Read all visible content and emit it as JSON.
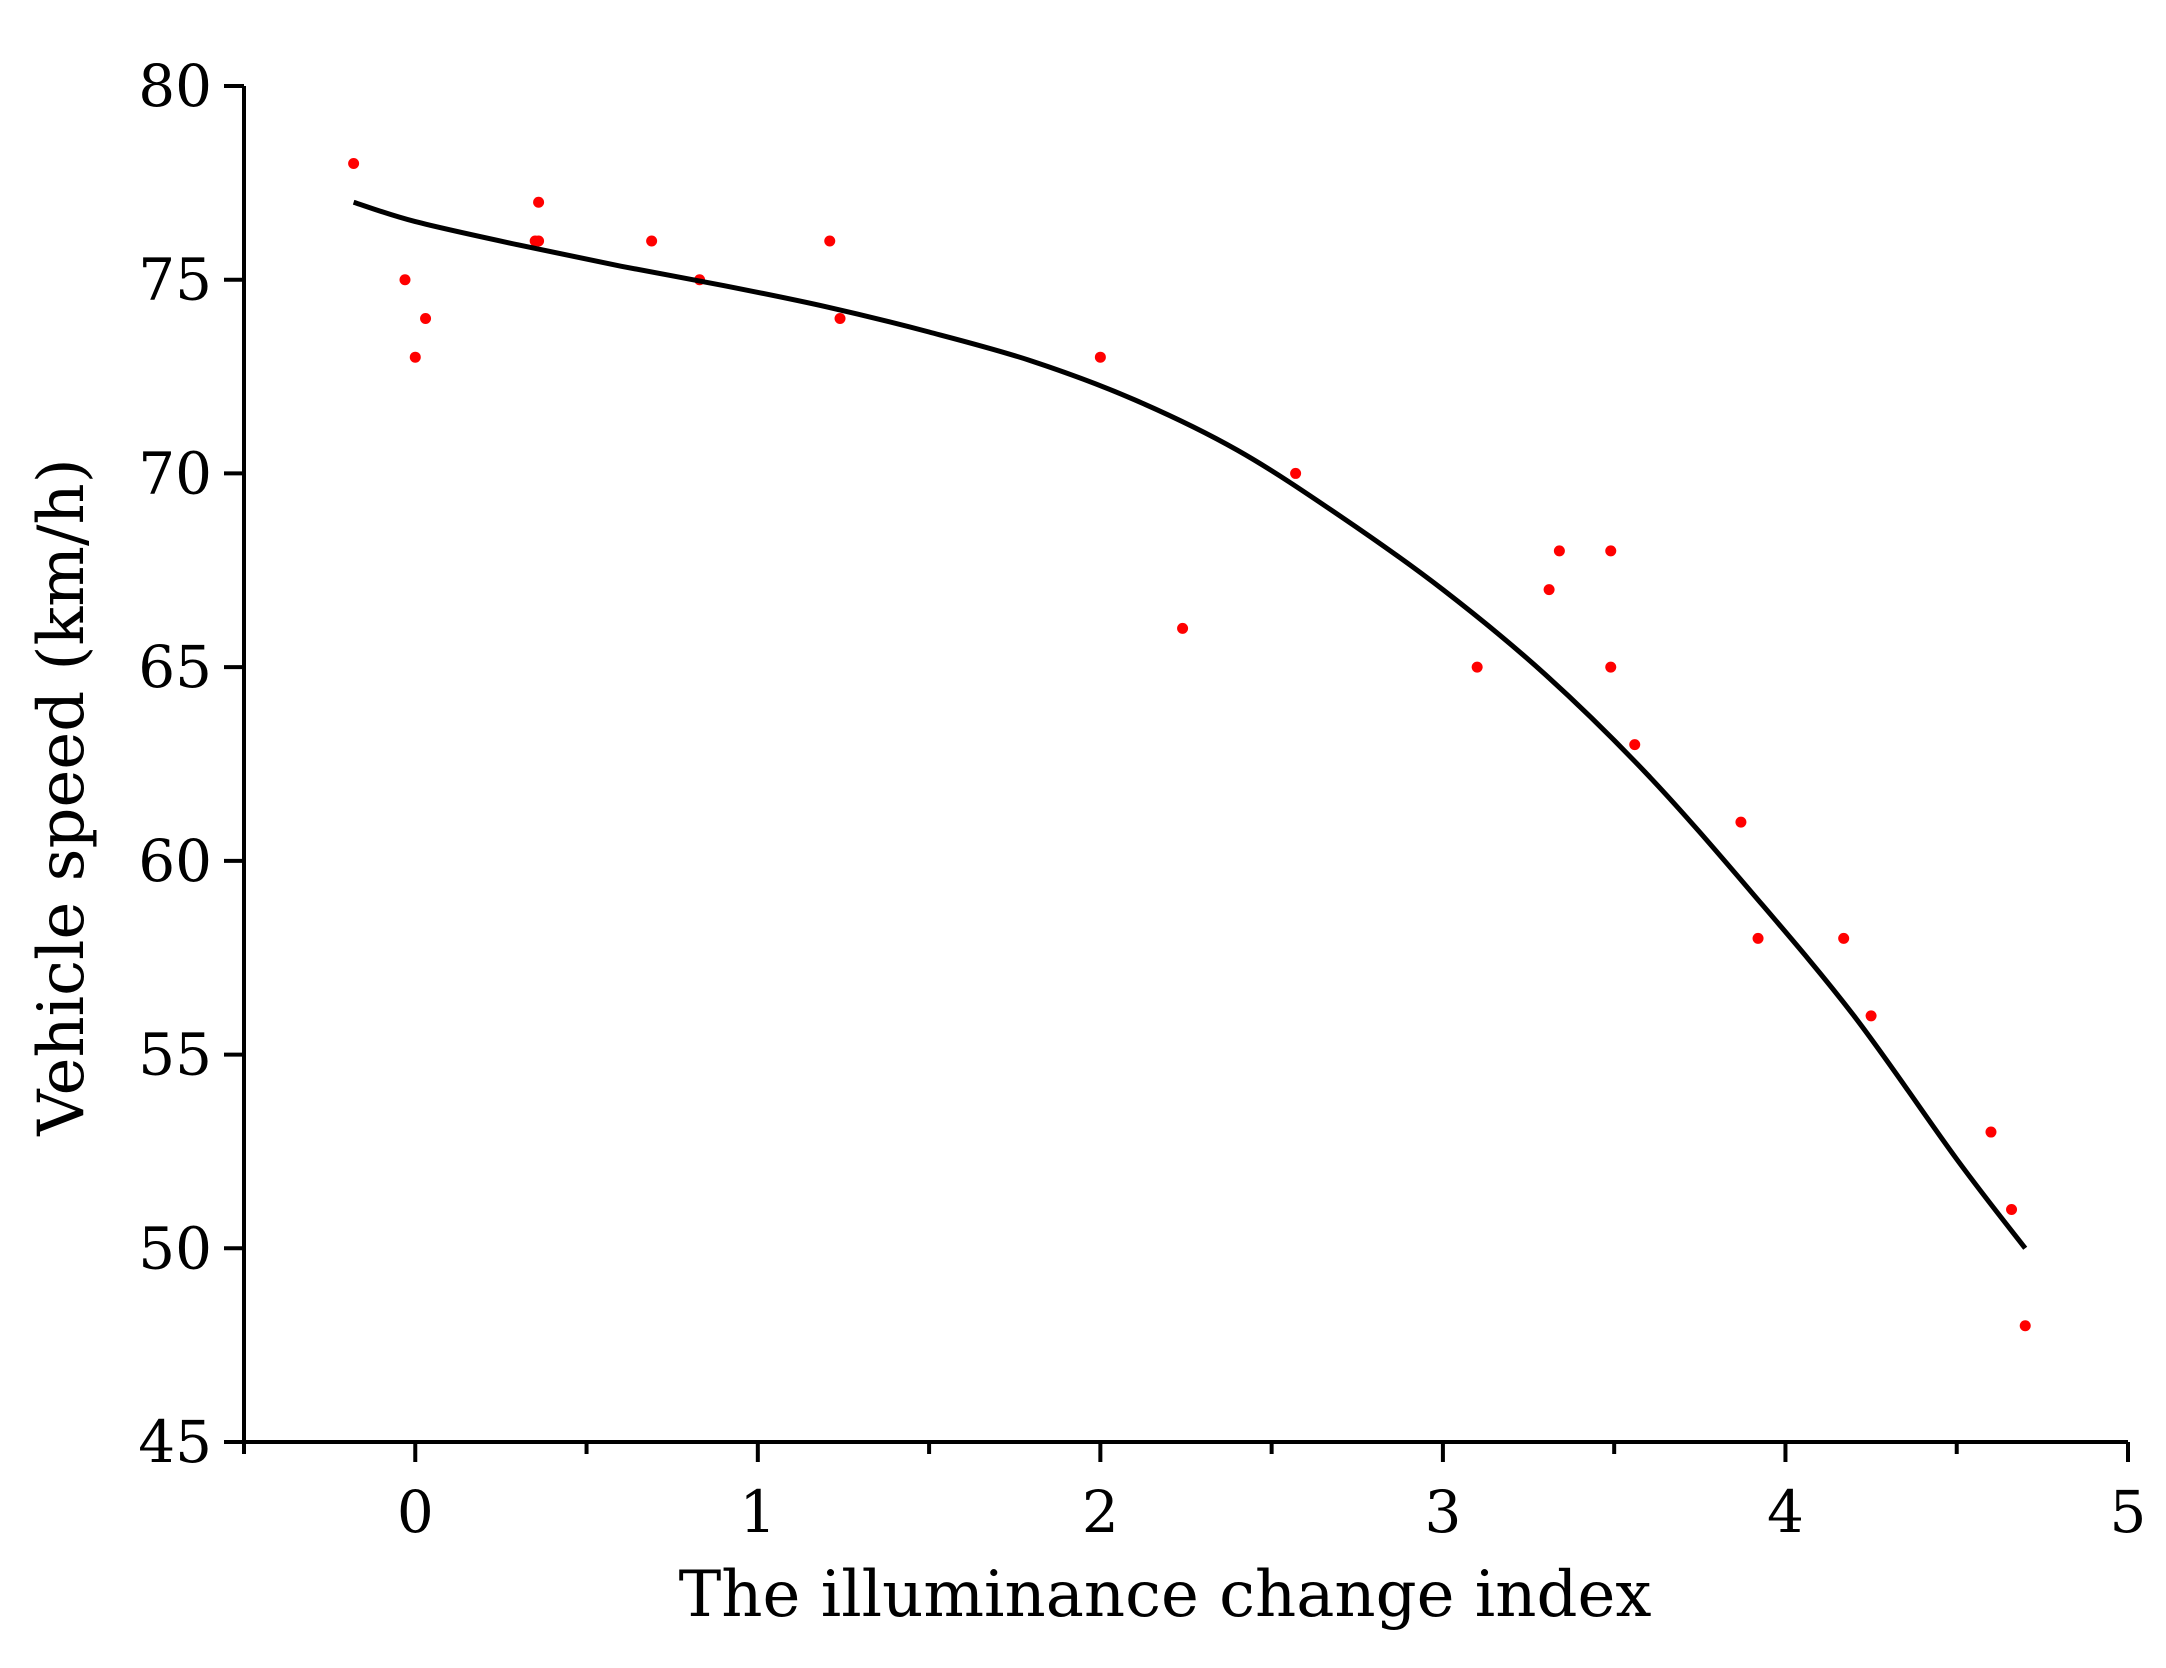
{
  "chart_data": {
    "type": "scatter",
    "title": "",
    "xlabel": "The illuminance change index",
    "ylabel": "Vehicle speed  (km/h)",
    "xlim": [
      -0.5,
      5
    ],
    "ylim": [
      45,
      80
    ],
    "x_ticks": [
      0,
      1,
      2,
      3,
      4,
      5
    ],
    "x_ticks_labels": [
      "0",
      "1",
      "2",
      "3",
      "4",
      "5"
    ],
    "x_minor_ticks": [
      -0.5,
      0.5,
      1.5,
      2.5,
      3.5,
      4.5
    ],
    "y_ticks": [
      45,
      50,
      55,
      60,
      65,
      70,
      75,
      80
    ],
    "y_ticks_labels": [
      "45",
      "50",
      "55",
      "60",
      "65",
      "70",
      "75",
      "80"
    ],
    "grid": false,
    "legend": "none",
    "colors": {
      "points": "#ff0000",
      "fit_line": "#000000",
      "axes": "#000000"
    },
    "series": [
      {
        "type": "scatter",
        "points": [
          [
            -0.18,
            78
          ],
          [
            -0.03,
            75
          ],
          [
            0.0,
            73
          ],
          [
            0.03,
            74
          ],
          [
            0.35,
            76
          ],
          [
            0.36,
            76
          ],
          [
            0.36,
            77
          ],
          [
            0.69,
            76
          ],
          [
            0.83,
            75
          ],
          [
            1.21,
            76
          ],
          [
            1.24,
            74
          ],
          [
            2.0,
            73
          ],
          [
            2.24,
            66
          ],
          [
            2.57,
            70
          ],
          [
            3.1,
            65
          ],
          [
            3.31,
            67
          ],
          [
            3.34,
            68
          ],
          [
            3.49,
            68
          ],
          [
            3.49,
            65
          ],
          [
            3.56,
            63
          ],
          [
            3.87,
            61
          ],
          [
            3.92,
            58
          ],
          [
            4.17,
            58
          ],
          [
            4.25,
            56
          ],
          [
            4.6,
            53
          ],
          [
            4.66,
            51
          ],
          [
            4.7,
            48
          ]
        ]
      },
      {
        "type": "line",
        "points": [
          [
            -0.18,
            77.0
          ],
          [
            0.0,
            76.5
          ],
          [
            0.3,
            75.9
          ],
          [
            0.6,
            75.35
          ],
          [
            0.9,
            74.85
          ],
          [
            1.2,
            74.3
          ],
          [
            1.5,
            73.65
          ],
          [
            1.8,
            72.9
          ],
          [
            2.1,
            71.9
          ],
          [
            2.4,
            70.6
          ],
          [
            2.7,
            68.9
          ],
          [
            3.0,
            67.0
          ],
          [
            3.3,
            64.8
          ],
          [
            3.6,
            62.2
          ],
          [
            3.9,
            59.2
          ],
          [
            4.2,
            56.0
          ],
          [
            4.5,
            52.3
          ],
          [
            4.7,
            50.0
          ]
        ]
      }
    ]
  }
}
